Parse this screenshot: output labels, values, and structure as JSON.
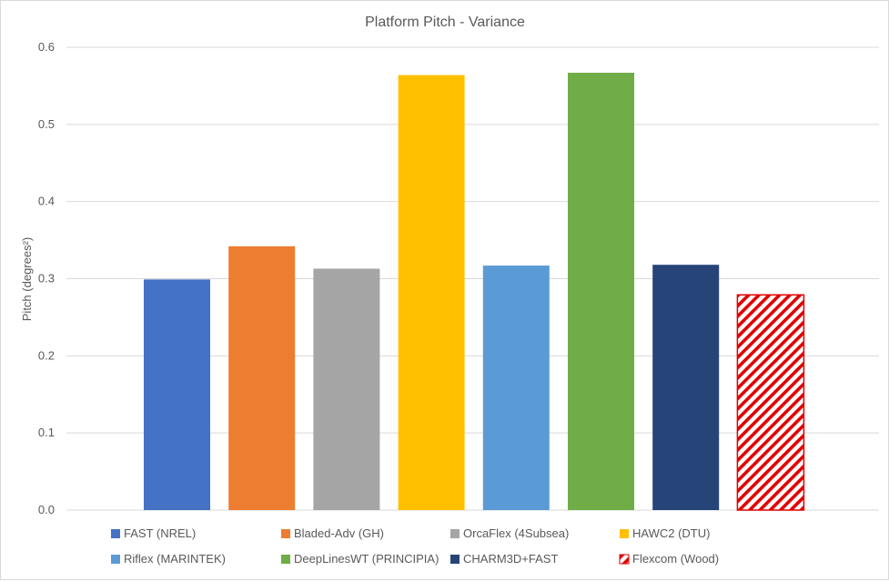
{
  "chart_data": {
    "type": "bar",
    "title": "Platform Pitch - Variance",
    "xlabel": "",
    "ylabel": "Pitch (degrees²)",
    "ylim": [
      0,
      0.6
    ],
    "yticks": [
      "0.0",
      "0.1",
      "0.2",
      "0.3",
      "0.4",
      "0.5",
      "0.6"
    ],
    "grid": true,
    "legend_position": "bottom",
    "series": [
      {
        "name": "FAST (NREL)",
        "value": 0.299,
        "color": "#4472C4",
        "pattern": "solid"
      },
      {
        "name": "Bladed-Adv (GH)",
        "value": 0.342,
        "color": "#ED7D31",
        "pattern": "solid"
      },
      {
        "name": "OrcaFlex (4Subsea)",
        "value": 0.313,
        "color": "#A5A5A5",
        "pattern": "solid"
      },
      {
        "name": "HAWC2 (DTU)",
        "value": 0.564,
        "color": "#FFC000",
        "pattern": "solid"
      },
      {
        "name": "Riflex (MARINTEK)",
        "value": 0.317,
        "color": "#5B9BD5",
        "pattern": "solid"
      },
      {
        "name": "DeepLinesWT (PRINCIPIA)",
        "value": 0.567,
        "color": "#70AD47",
        "pattern": "solid"
      },
      {
        "name": "CHARM3D+FAST",
        "value": 0.318,
        "color": "#264478",
        "pattern": "solid"
      },
      {
        "name": "Flexcom (Wood)",
        "value": 0.279,
        "color": "#E00000",
        "pattern": "diagonal-hatch"
      }
    ]
  }
}
